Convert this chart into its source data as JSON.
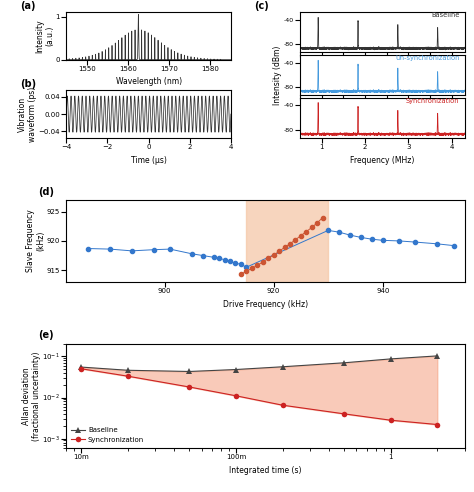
{
  "title_a": "(a)",
  "title_b": "(b)",
  "title_c": "(c)",
  "title_d": "(d)",
  "title_e": "(e)",
  "panel_a": {
    "xlabel": "Wavelength (nm)",
    "ylabel": "Intensity\n(a.u.)",
    "xlim": [
      1545,
      1585
    ],
    "ylim": [
      0,
      1.1
    ],
    "xticks": [
      1550,
      1560,
      1570,
      1580
    ],
    "yticks": [
      0,
      1
    ],
    "color": "#333333"
  },
  "panel_b": {
    "xlabel": "Time (μs)",
    "ylabel": "Vibration\nwaveform (ps)",
    "xlim": [
      -4,
      4
    ],
    "ylim": [
      -0.055,
      0.055
    ],
    "xticks": [
      -4,
      -2,
      0,
      2,
      4
    ],
    "yticks": [
      -0.04,
      0.0,
      0.04
    ],
    "color": "#333333"
  },
  "panel_c": {
    "xlabel": "Frequency (MHz)",
    "ylabel": "Intensity (dBm)",
    "xlim": [
      0.5,
      4.3
    ],
    "yticks": [
      -80,
      -40
    ],
    "xticks": [
      1,
      2,
      3,
      4
    ],
    "noise_floor": -87,
    "baseline_color": "#333333",
    "unsync_color": "#4499dd",
    "sync_color": "#cc2222",
    "baseline_label": "Baseline",
    "unsync_label": "Un-synchronization",
    "sync_label": "Synchronization",
    "baseline_peaks": [
      [
        0.92,
        -37
      ],
      [
        1.84,
        -42
      ],
      [
        2.76,
        -49
      ],
      [
        3.68,
        -54
      ]
    ],
    "unsync_peaks": [
      [
        0.92,
        -37
      ],
      [
        1.84,
        -43
      ],
      [
        2.76,
        -50
      ],
      [
        3.68,
        -56
      ]
    ],
    "sync_peaks": [
      [
        0.92,
        -36
      ],
      [
        1.84,
        -42
      ],
      [
        2.76,
        -49
      ],
      [
        3.68,
        -54
      ]
    ]
  },
  "panel_d": {
    "xlabel": "Drive Frequency (kHz)",
    "ylabel": "Slave Frequency\n(kHz)",
    "xlim": [
      882,
      955
    ],
    "ylim": [
      913,
      927
    ],
    "xticks": [
      900,
      920,
      940
    ],
    "yticks": [
      915,
      920,
      925
    ],
    "blue_color": "#3377cc",
    "red_color": "#cc5533",
    "bg_color": "#f5c8a8",
    "bg_xmin": 915,
    "bg_xmax": 930,
    "blue_x": [
      886,
      890,
      894,
      898,
      901,
      905,
      907,
      909,
      910,
      911,
      912,
      913,
      914,
      915,
      930,
      932,
      934,
      936,
      938,
      940,
      943,
      946,
      950,
      953
    ],
    "blue_y": [
      918.7,
      918.6,
      918.3,
      918.5,
      918.6,
      917.8,
      917.5,
      917.2,
      917.0,
      916.8,
      916.5,
      916.2,
      916.0,
      915.5,
      921.8,
      921.5,
      921.0,
      920.6,
      920.3,
      920.1,
      920.0,
      919.8,
      919.5,
      919.2
    ],
    "red_x": [
      914,
      915,
      916,
      917,
      918,
      919,
      920,
      921,
      922,
      923,
      924,
      925,
      926,
      927,
      928,
      929
    ],
    "red_y": [
      914.3,
      914.8,
      915.3,
      915.8,
      916.4,
      917.0,
      917.6,
      918.2,
      918.9,
      919.5,
      920.2,
      920.9,
      921.6,
      922.3,
      923.1,
      924.0
    ]
  },
  "panel_e": {
    "xlabel": "Integrated time (s)",
    "ylabel": "Allan deviation\n(fractional uncertainty)",
    "baseline_color": "#444444",
    "sync_color": "#cc2222",
    "fill_color": "#f5a080",
    "baseline_label": "Baseline",
    "sync_label": "Synchronization",
    "baseline_x": [
      0.01,
      0.02,
      0.05,
      0.1,
      0.2,
      0.5,
      1.0,
      2.0
    ],
    "baseline_y": [
      0.055,
      0.046,
      0.043,
      0.048,
      0.056,
      0.07,
      0.087,
      0.103
    ],
    "sync_x": [
      0.01,
      0.02,
      0.05,
      0.1,
      0.2,
      0.5,
      1.0,
      2.0
    ],
    "sync_y": [
      0.05,
      0.033,
      0.018,
      0.011,
      0.0065,
      0.004,
      0.0028,
      0.0022
    ]
  }
}
